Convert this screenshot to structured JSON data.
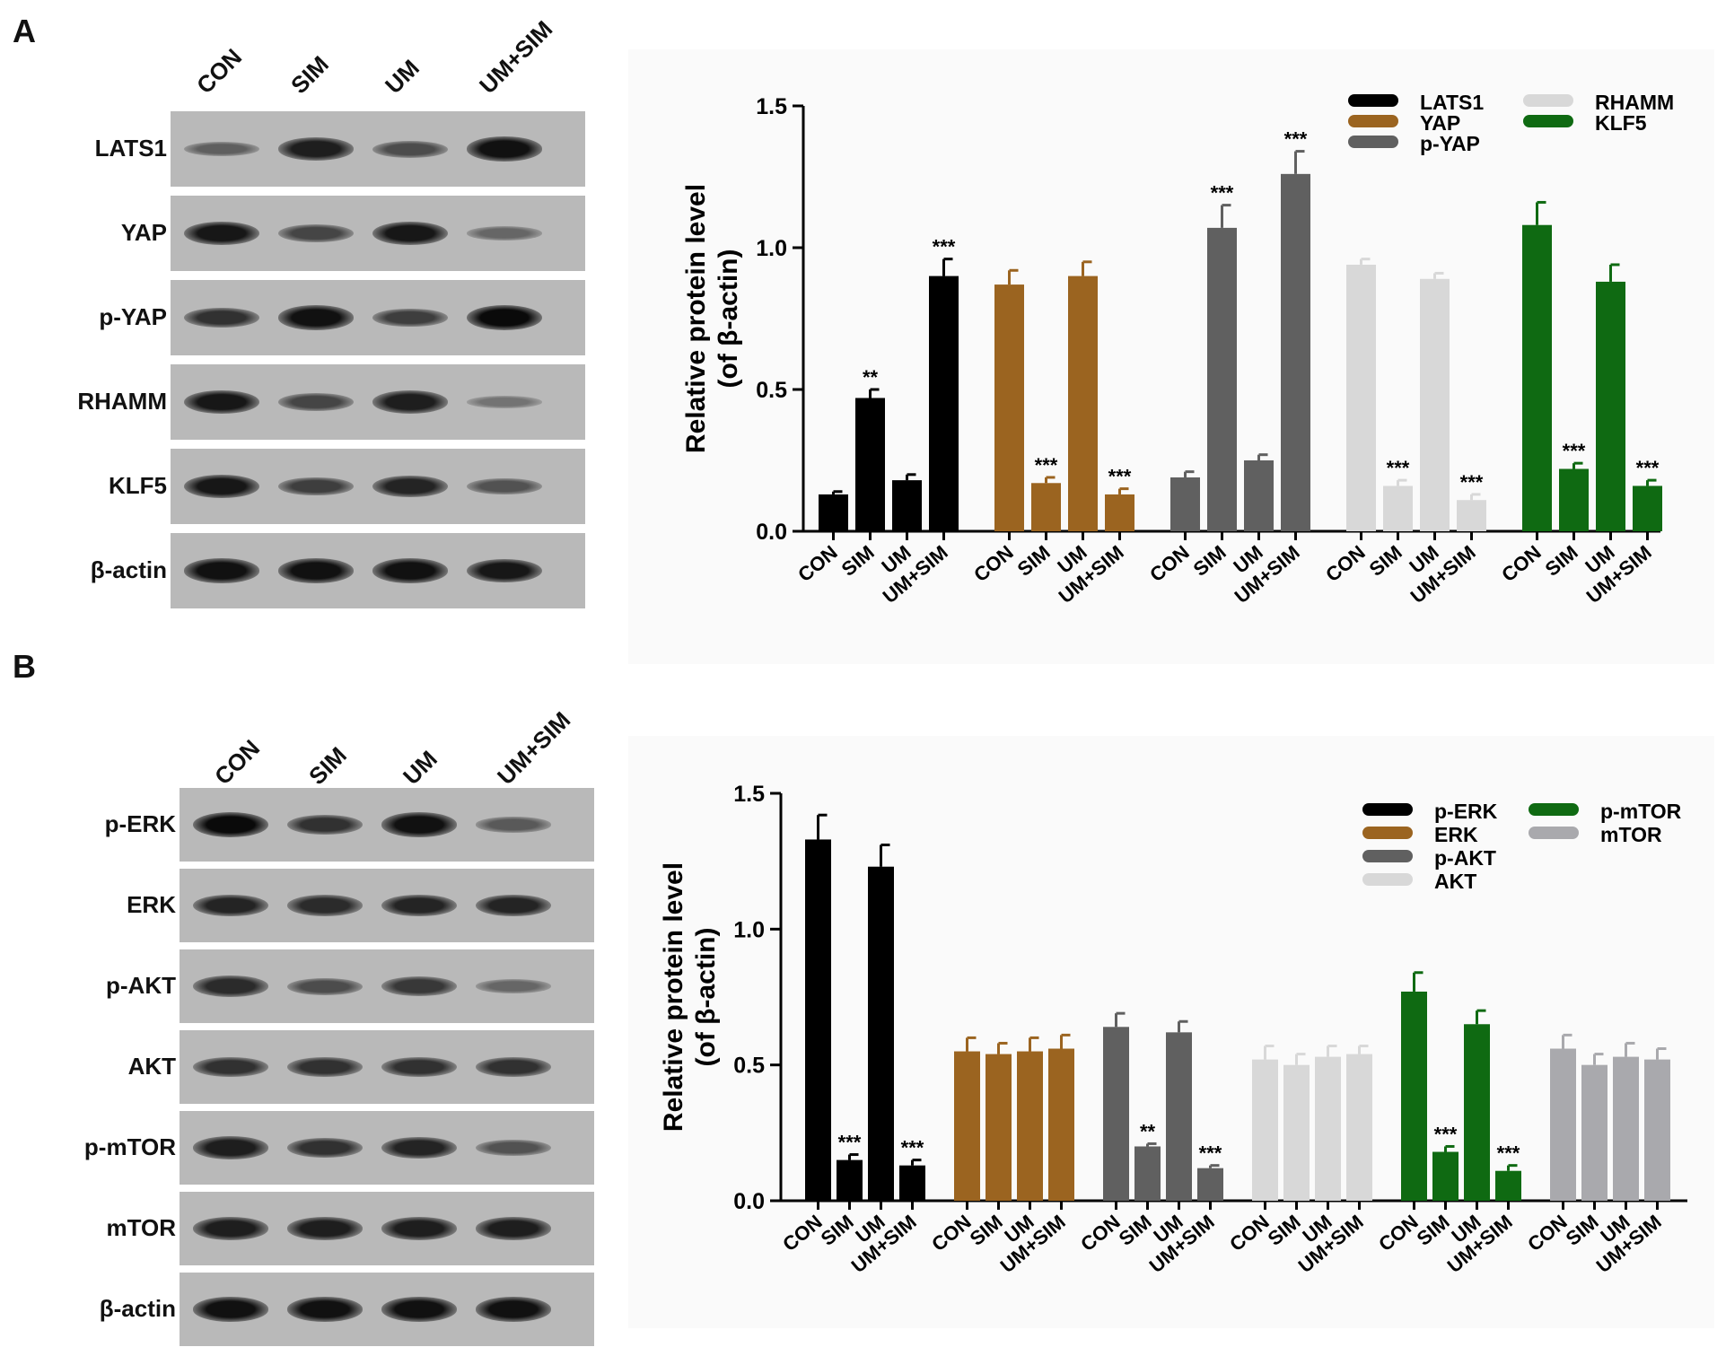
{
  "panels": [
    {
      "label": "A",
      "blot": {
        "lanes": [
          "CON",
          "SIM",
          "UM",
          "UM+SIM"
        ],
        "rows": [
          {
            "name": "LATS1",
            "intensity": [
              0.35,
              0.85,
              0.5,
              0.95
            ]
          },
          {
            "name": "YAP",
            "intensity": [
              0.9,
              0.55,
              0.9,
              0.3
            ]
          },
          {
            "name": "p-YAP",
            "intensity": [
              0.7,
              0.95,
              0.6,
              1.0
            ]
          },
          {
            "name": "RHAMM",
            "intensity": [
              0.9,
              0.55,
              0.85,
              0.2
            ]
          },
          {
            "name": "KLF5",
            "intensity": [
              0.9,
              0.6,
              0.8,
              0.45
            ]
          },
          {
            "name": "β-actin",
            "intensity": [
              0.95,
              0.95,
              0.95,
              0.9
            ]
          }
        ]
      }
    },
    {
      "label": "B",
      "blot": {
        "lanes": [
          "CON",
          "SIM",
          "UM",
          "UM+SIM"
        ],
        "rows": [
          {
            "name": "p-ERK",
            "intensity": [
              1.0,
              0.7,
              0.95,
              0.4
            ]
          },
          {
            "name": "ERK",
            "intensity": [
              0.8,
              0.75,
              0.8,
              0.8
            ]
          },
          {
            "name": "p-AKT",
            "intensity": [
              0.75,
              0.5,
              0.65,
              0.3
            ]
          },
          {
            "name": "AKT",
            "intensity": [
              0.7,
              0.7,
              0.7,
              0.7
            ]
          },
          {
            "name": "p-mTOR",
            "intensity": [
              0.85,
              0.7,
              0.8,
              0.45
            ]
          },
          {
            "name": "mTOR",
            "intensity": [
              0.85,
              0.85,
              0.85,
              0.85
            ]
          },
          {
            "name": "β-actin",
            "intensity": [
              0.95,
              0.95,
              0.95,
              0.95
            ]
          }
        ]
      }
    }
  ],
  "chart_data": [
    {
      "type": "bar",
      "panel": "A",
      "ylabel": "Relative protein level\n(of  β-actin)",
      "ylim": [
        0,
        1.5
      ],
      "yticks": [
        "0.0",
        "0.5",
        "1.0",
        "1.5"
      ],
      "categories": [
        "CON",
        "SIM",
        "UM",
        "UM+SIM"
      ],
      "legend_placement": "top-right",
      "series": [
        {
          "name": "LATS1",
          "color": "#000000",
          "values": [
            0.13,
            0.47,
            0.18,
            0.9
          ],
          "errors": [
            0.01,
            0.03,
            0.02,
            0.06
          ],
          "marks": [
            "",
            "**",
            "",
            "***"
          ]
        },
        {
          "name": "YAP",
          "color": "#9b6420",
          "values": [
            0.87,
            0.17,
            0.9,
            0.13
          ],
          "errors": [
            0.05,
            0.02,
            0.05,
            0.02
          ],
          "marks": [
            "",
            "***",
            "",
            "***"
          ]
        },
        {
          "name": "p-YAP",
          "color": "#606060",
          "values": [
            0.19,
            1.07,
            0.25,
            1.26
          ],
          "errors": [
            0.02,
            0.08,
            0.02,
            0.08
          ],
          "marks": [
            "",
            "***",
            "",
            "***"
          ]
        },
        {
          "name": "RHAMM",
          "color": "#d8d8d8",
          "values": [
            0.94,
            0.16,
            0.89,
            0.11
          ],
          "errors": [
            0.02,
            0.02,
            0.02,
            0.02
          ],
          "marks": [
            "",
            "***",
            "",
            "***"
          ]
        },
        {
          "name": "KLF5",
          "color": "#0f6a12",
          "values": [
            1.08,
            0.22,
            0.88,
            0.16
          ],
          "errors": [
            0.08,
            0.02,
            0.06,
            0.02
          ],
          "marks": [
            "",
            "***",
            "",
            "***"
          ]
        }
      ]
    },
    {
      "type": "bar",
      "panel": "B",
      "ylabel": "Relative protein level\n(of  β-actin)",
      "ylim": [
        0,
        1.5
      ],
      "yticks": [
        "0.0",
        "0.5",
        "1.0",
        "1.5"
      ],
      "categories": [
        "CON",
        "SIM",
        "UM",
        "UM+SIM"
      ],
      "legend_placement": "top-right",
      "series": [
        {
          "name": "p-ERK",
          "color": "#000000",
          "values": [
            1.33,
            0.15,
            1.23,
            0.13
          ],
          "errors": [
            0.09,
            0.02,
            0.08,
            0.02
          ],
          "marks": [
            "",
            "***",
            "",
            "***"
          ]
        },
        {
          "name": "ERK",
          "color": "#9b6420",
          "values": [
            0.55,
            0.54,
            0.55,
            0.56
          ],
          "errors": [
            0.05,
            0.04,
            0.05,
            0.05
          ],
          "marks": [
            "",
            "",
            "",
            ""
          ]
        },
        {
          "name": "p-AKT",
          "color": "#606060",
          "values": [
            0.64,
            0.2,
            0.62,
            0.12
          ],
          "errors": [
            0.05,
            0.01,
            0.04,
            0.01
          ],
          "marks": [
            "",
            "**",
            "",
            "***"
          ]
        },
        {
          "name": "AKT",
          "color": "#d8d8d8",
          "values": [
            0.52,
            0.5,
            0.53,
            0.54
          ],
          "errors": [
            0.05,
            0.04,
            0.04,
            0.03
          ],
          "marks": [
            "",
            "",
            "",
            ""
          ]
        },
        {
          "name": "p-mTOR",
          "color": "#0f6a12",
          "values": [
            0.77,
            0.18,
            0.65,
            0.11
          ],
          "errors": [
            0.07,
            0.02,
            0.05,
            0.02
          ],
          "marks": [
            "",
            "***",
            "",
            "***"
          ]
        },
        {
          "name": "mTOR",
          "color": "#a9a9ad",
          "values": [
            0.56,
            0.5,
            0.53,
            0.52
          ],
          "errors": [
            0.05,
            0.04,
            0.05,
            0.04
          ],
          "marks": [
            "",
            "",
            "",
            ""
          ]
        }
      ]
    }
  ]
}
